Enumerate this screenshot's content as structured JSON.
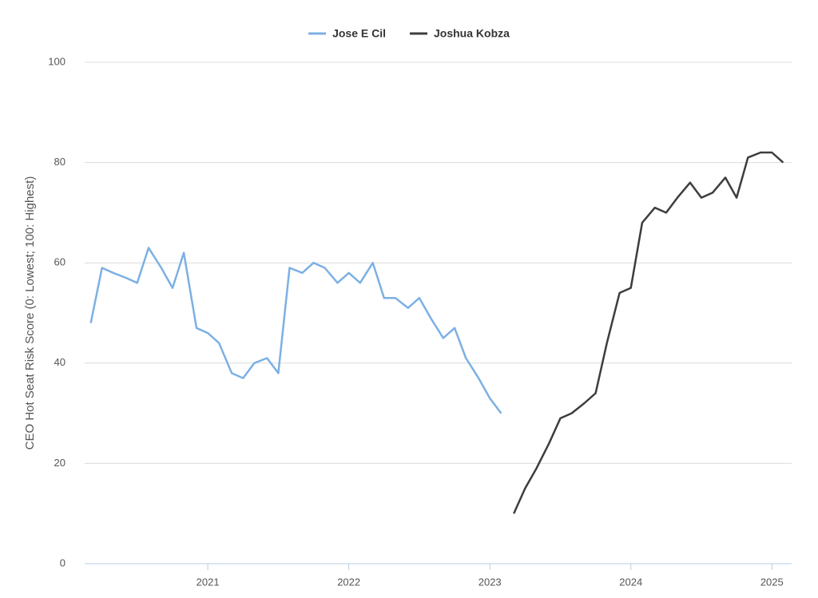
{
  "chart_data": {
    "type": "line",
    "y_label": "CEO Hot Seat Risk Score (0: Lowest; 100: Highest)",
    "series": [
      {
        "name": "Jose E Cil",
        "color": "#7cb0e4",
        "x": [
          2020.17,
          2020.25,
          2020.33,
          2020.42,
          2020.5,
          2020.58,
          2020.67,
          2020.75,
          2020.83,
          2020.92,
          2021.0,
          2021.08,
          2021.17,
          2021.25,
          2021.33,
          2021.42,
          2021.5,
          2021.58,
          2021.67,
          2021.75,
          2021.83,
          2021.92,
          2022.0,
          2022.08,
          2022.17,
          2022.25,
          2022.33,
          2022.42,
          2022.5,
          2022.58,
          2022.67,
          2022.75,
          2022.83,
          2022.92,
          2023.0,
          2023.08
        ],
        "values": [
          48,
          59,
          58,
          57,
          56,
          63,
          59,
          55,
          62,
          47,
          46,
          44,
          38,
          37,
          40,
          41,
          38,
          59,
          58,
          60,
          59,
          56,
          58,
          56,
          60,
          53,
          53,
          51,
          53,
          49,
          45,
          47,
          41,
          37,
          33,
          30
        ]
      },
      {
        "name": "Joshua Kobza",
        "color": "#3d3d3d",
        "x": [
          2023.17,
          2023.25,
          2023.33,
          2023.42,
          2023.5,
          2023.58,
          2023.67,
          2023.75,
          2023.83,
          2023.92,
          2024.0,
          2024.08,
          2024.17,
          2024.25,
          2024.33,
          2024.42,
          2024.5,
          2024.58,
          2024.67,
          2024.75,
          2024.83,
          2024.92,
          2025.0,
          2025.08
        ],
        "values": [
          10,
          15,
          19,
          24,
          29,
          30,
          32,
          34,
          44,
          54,
          55,
          68,
          71,
          70,
          73,
          76,
          73,
          74,
          77,
          73,
          81,
          82,
          82,
          80
        ]
      }
    ],
    "xlim": [
      2020.127,
      2025.14
    ],
    "xticks": [
      2021,
      2022,
      2023,
      2024,
      2025
    ],
    "ylim": [
      0,
      100
    ],
    "yticks": [
      0,
      20,
      40,
      60,
      80,
      100
    ],
    "grid": true
  }
}
